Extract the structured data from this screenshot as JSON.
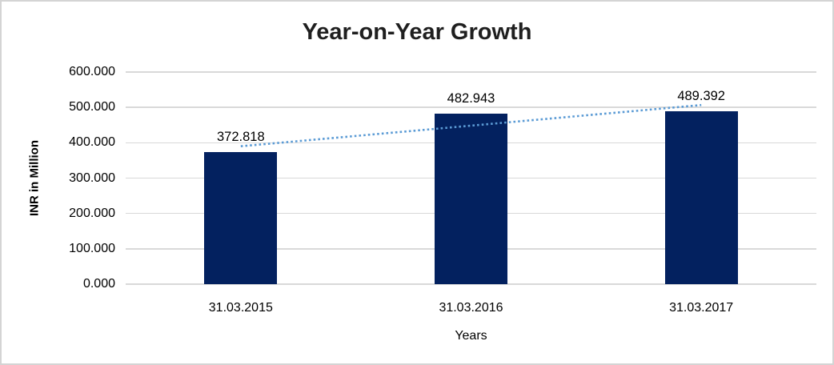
{
  "window": {
    "background_color": "#ffffff",
    "border_color": "#d4d4d4"
  },
  "chart_data": {
    "type": "bar",
    "title": "Year-on-Year Growth",
    "xlabel": "Years",
    "ylabel": "INR in Million",
    "categories": [
      "31.03.2015",
      "31.03.2016",
      "31.03.2017"
    ],
    "values": [
      372.818,
      482.943,
      489.392
    ],
    "data_labels": [
      "372.818",
      "482.943",
      "489.392"
    ],
    "y_ticks": [
      {
        "value": 0,
        "label": "0.000"
      },
      {
        "value": 100,
        "label": "100.000"
      },
      {
        "value": 200,
        "label": "200.000"
      },
      {
        "value": 300,
        "label": "300.000"
      },
      {
        "value": 400,
        "label": "400.000"
      },
      {
        "value": 500,
        "label": "500.000"
      },
      {
        "value": 600,
        "label": "600.000"
      }
    ],
    "ylim": [
      0,
      600
    ],
    "grid": "horizontal",
    "legend": "none",
    "bar_color": "#03215f",
    "gridline_color": "#d9d9d9",
    "label_color": "#000000",
    "title_color": "#1f1f1f",
    "trendline": {
      "type": "linear",
      "style": "dotted",
      "color": "#5b9bd5",
      "from_value": 390.1,
      "to_value": 506.67
    }
  }
}
